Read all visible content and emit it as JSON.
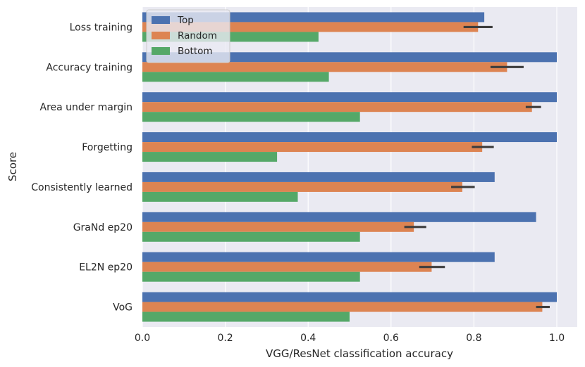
{
  "chart_data": {
    "type": "bar",
    "orientation": "horizontal",
    "title": "",
    "xlabel": "VGG/ResNet classification accuracy",
    "ylabel": "Score",
    "xlim": [
      0.0,
      1.05
    ],
    "xticks": [
      "0.0",
      "0.2",
      "0.4",
      "0.6",
      "0.8",
      "1.0"
    ],
    "xtick_values": [
      0.0,
      0.2,
      0.4,
      0.6,
      0.8,
      1.0
    ],
    "grid": true,
    "legend_position": "top-left",
    "categories": [
      "Loss training",
      "Accuracy training",
      "Area under margin",
      "Forgetting",
      "Consistently learned",
      "GraNd ep20",
      "EL2N ep20",
      "VoG"
    ],
    "series": [
      {
        "name": "Top",
        "color": "#4c72b0",
        "values": [
          0.825,
          1.0,
          1.0,
          1.0,
          0.85,
          0.95,
          0.85,
          1.0
        ]
      },
      {
        "name": "Random",
        "color": "#dd8452",
        "values": [
          0.81,
          0.88,
          0.94,
          0.82,
          0.772,
          0.655,
          0.698,
          0.965
        ],
        "error": [
          [
            0.775,
            0.845
          ],
          [
            0.84,
            0.92
          ],
          [
            0.925,
            0.962
          ],
          [
            0.795,
            0.848
          ],
          [
            0.745,
            0.802
          ],
          [
            0.632,
            0.685
          ],
          [
            0.668,
            0.73
          ],
          [
            0.95,
            0.983
          ]
        ]
      },
      {
        "name": "Bottom",
        "color": "#55a868",
        "values": [
          0.425,
          0.45,
          0.525,
          0.325,
          0.375,
          0.525,
          0.525,
          0.5
        ]
      }
    ]
  }
}
